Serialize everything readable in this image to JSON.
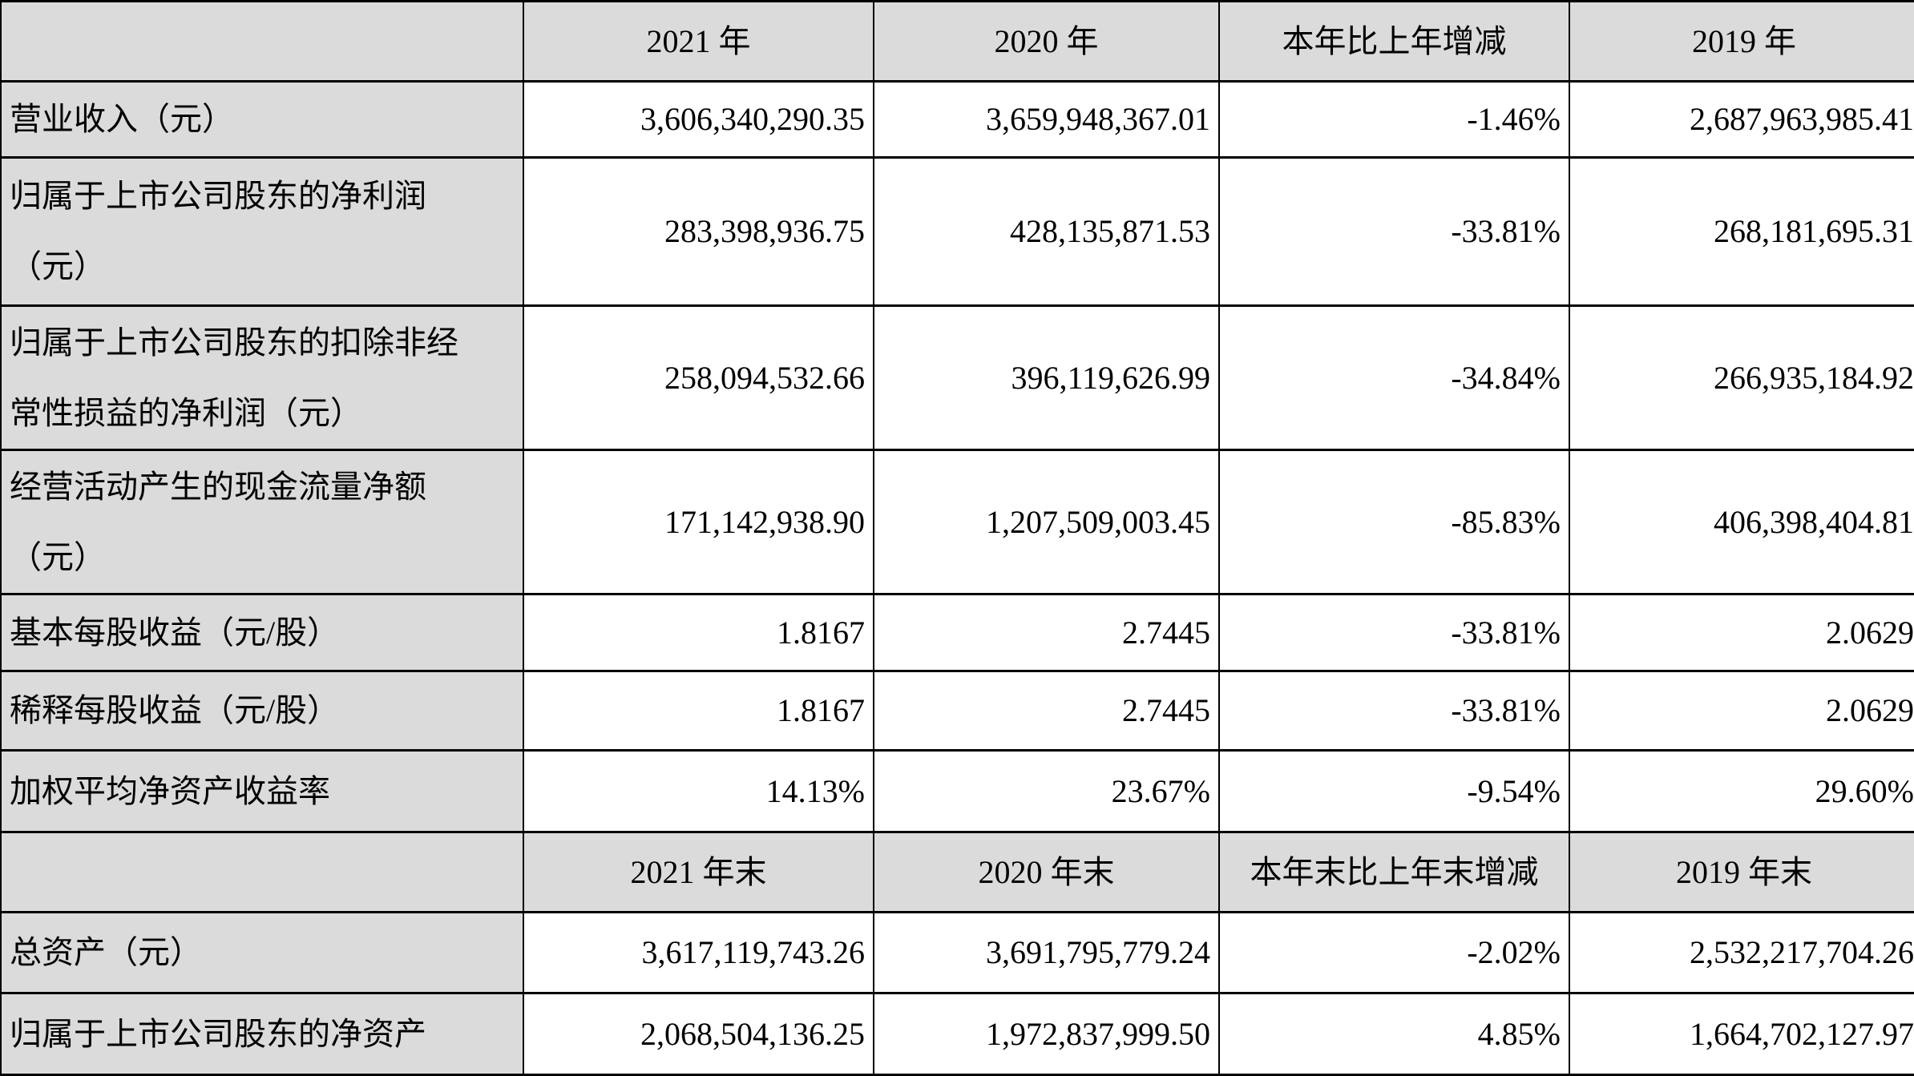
{
  "colors": {
    "header_bg": "#dbdbdb",
    "cell_bg": "#ffffff",
    "border": "#000000",
    "text": "#000000"
  },
  "annual": {
    "headers": [
      "",
      "2021 年",
      "2020 年",
      "本年比上年增减",
      "2019 年"
    ],
    "rows": [
      {
        "label": "营业收入（元）",
        "y2021": "3,606,340,290.35",
        "y2020": "3,659,948,367.01",
        "change": "-1.46%",
        "y2019": "2,687,963,985.41"
      },
      {
        "label": "归属于上市公司股东的净利润\n（元）",
        "y2021": "283,398,936.75",
        "y2020": "428,135,871.53",
        "change": "-33.81%",
        "y2019": "268,181,695.31"
      },
      {
        "label": "归属于上市公司股东的扣除非经\n常性损益的净利润（元）",
        "y2021": "258,094,532.66",
        "y2020": "396,119,626.99",
        "change": "-34.84%",
        "y2019": "266,935,184.92"
      },
      {
        "label": "经营活动产生的现金流量净额\n（元）",
        "y2021": "171,142,938.90",
        "y2020": "1,207,509,003.45",
        "change": "-85.83%",
        "y2019": "406,398,404.81"
      },
      {
        "label": "基本每股收益（元/股）",
        "y2021": "1.8167",
        "y2020": "2.7445",
        "change": "-33.81%",
        "y2019": "2.0629"
      },
      {
        "label": "稀释每股收益（元/股）",
        "y2021": "1.8167",
        "y2020": "2.7445",
        "change": "-33.81%",
        "y2019": "2.0629"
      },
      {
        "label": "加权平均净资产收益率",
        "y2021": "14.13%",
        "y2020": "23.67%",
        "change": "-9.54%",
        "y2019": "29.60%"
      }
    ]
  },
  "year_end": {
    "headers": [
      "",
      "2021 年末",
      "2020 年末",
      "本年末比上年末增减",
      "2019 年末"
    ],
    "rows": [
      {
        "label": "总资产（元）",
        "y2021": "3,617,119,743.26",
        "y2020": "3,691,795,779.24",
        "change": "-2.02%",
        "y2019": "2,532,217,704.26"
      },
      {
        "label": "归属于上市公司股东的净资产",
        "y2021": "2,068,504,136.25",
        "y2020": "1,972,837,999.50",
        "change": "4.85%",
        "y2019": "1,664,702,127.97"
      }
    ]
  }
}
